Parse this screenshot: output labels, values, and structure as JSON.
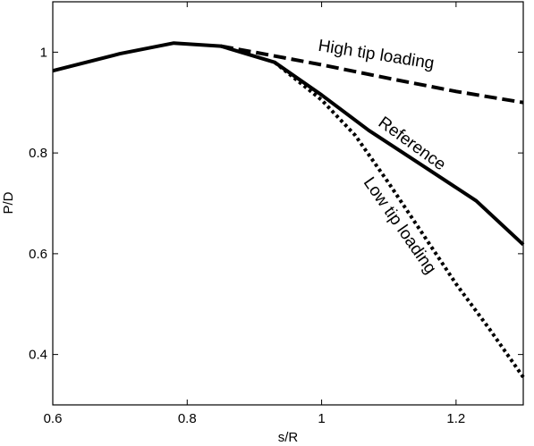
{
  "chart_data": {
    "type": "line",
    "xlabel": "s/R",
    "ylabel": "P/D",
    "xlim": [
      0.6,
      1.3
    ],
    "ylim": [
      0.3,
      1.1
    ],
    "xticks": [
      0.6,
      0.8,
      1,
      1.2
    ],
    "yticks": [
      0.4,
      0.6,
      0.8,
      1
    ],
    "xtick_labels": [
      "0.6",
      "0.8",
      "1",
      "1.2"
    ],
    "ytick_labels": [
      "0.4",
      "0.6",
      "0.8",
      "1"
    ],
    "grid": false,
    "legend": "none",
    "series": [
      {
        "name": "Reference",
        "style": "solid",
        "color": "#000000",
        "x": [
          0.6,
          0.7,
          0.78,
          0.85,
          0.93,
          1.0,
          1.07,
          1.15,
          1.23,
          1.3
        ],
        "y": [
          0.963,
          0.997,
          1.018,
          1.012,
          0.98,
          0.915,
          0.845,
          0.775,
          0.705,
          0.618
        ]
      },
      {
        "name": "High tip loading",
        "style": "dashed",
        "color": "#000000",
        "x": [
          0.85,
          0.9,
          1.0,
          1.1,
          1.2,
          1.3
        ],
        "y": [
          1.012,
          1.0,
          0.975,
          0.948,
          0.922,
          0.9
        ]
      },
      {
        "name": "Low tip loading",
        "style": "dotted",
        "color": "#000000",
        "x": [
          0.93,
          1.0,
          1.05,
          1.1,
          1.15,
          1.2,
          1.25,
          1.3
        ],
        "y": [
          0.98,
          0.905,
          0.835,
          0.74,
          0.64,
          0.54,
          0.45,
          0.355
        ]
      }
    ],
    "annotations": [
      {
        "text": "High tip loading",
        "x": 1.08,
        "y": 0.985,
        "rotation": 9
      },
      {
        "text": "Reference",
        "x": 1.13,
        "y": 0.81,
        "rotation": 36
      },
      {
        "text": "Low tip loading",
        "x": 1.11,
        "y": 0.65,
        "rotation": 55
      }
    ]
  }
}
